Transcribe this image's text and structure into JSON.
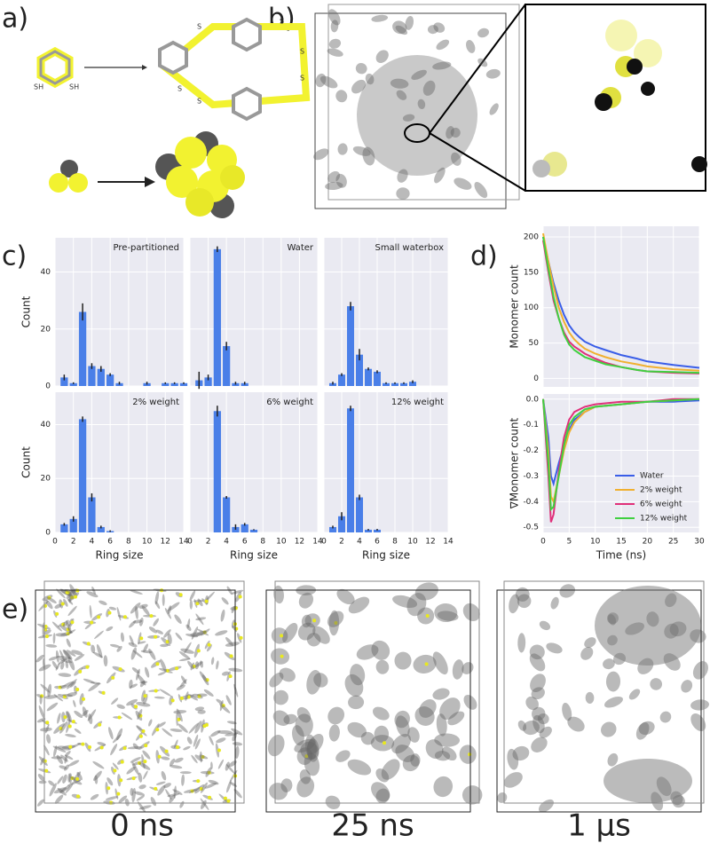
{
  "panel_labels": [
    "a)",
    "b)",
    "c)",
    "d)",
    "e)"
  ],
  "panel_a": {
    "thiol_labels": [
      "SH",
      "SH"
    ],
    "sulfur_labels": [
      "S",
      "S",
      "S",
      "S",
      "S",
      "S"
    ]
  },
  "chart_data": [
    {
      "type": "bar",
      "title": "Pre-partitioned",
      "x": [
        1,
        2,
        3,
        4,
        5,
        6,
        7,
        10,
        12,
        13,
        14
      ],
      "values": [
        3,
        1,
        26,
        7,
        6,
        4,
        1,
        1,
        1,
        1,
        1
      ],
      "errors": [
        1,
        0.3,
        3,
        1,
        1,
        0.5,
        0.5,
        0.5,
        0.3,
        0.3,
        0.3
      ],
      "color": "#4a7fe8",
      "xlim": [
        0,
        14
      ],
      "xticks": [
        0,
        2,
        4,
        6,
        8,
        10,
        12,
        14
      ],
      "ylim": [
        0,
        52
      ],
      "yticks": [
        0,
        20,
        40
      ],
      "ylabel": "Count",
      "grid": true
    },
    {
      "type": "bar",
      "title": "Water",
      "x": [
        1,
        2,
        3,
        4,
        5,
        6
      ],
      "values": [
        2,
        3,
        48,
        14,
        1,
        1
      ],
      "errors": [
        3,
        1,
        1,
        1.5,
        0.5,
        0.5
      ],
      "color": "#4a7fe8",
      "xlim": [
        0,
        14
      ],
      "xticks": [
        0,
        2,
        4,
        6,
        8,
        10,
        12,
        14
      ],
      "ylim": [
        0,
        52
      ],
      "yticks": [
        0,
        20,
        40
      ],
      "grid": true
    },
    {
      "type": "bar",
      "title": "Small waterbox",
      "x": [
        1,
        2,
        3,
        4,
        5,
        6,
        7,
        8,
        9,
        10
      ],
      "values": [
        1,
        4,
        28,
        11,
        6,
        5,
        1,
        1,
        1,
        1.5
      ],
      "errors": [
        0.5,
        0.5,
        1.5,
        2,
        0.5,
        0.5,
        0.3,
        0.3,
        0.3,
        0.5
      ],
      "color": "#4a7fe8",
      "xlim": [
        0,
        14
      ],
      "xticks": [
        0,
        2,
        4,
        6,
        8,
        10,
        12,
        14
      ],
      "ylim": [
        0,
        52
      ],
      "yticks": [
        0,
        20,
        40
      ],
      "grid": true
    },
    {
      "type": "bar",
      "title": "2% weight",
      "x": [
        1,
        2,
        3,
        4,
        5,
        6
      ],
      "values": [
        3,
        5,
        42,
        13,
        2,
        0.5
      ],
      "errors": [
        0.5,
        1,
        1,
        1.5,
        0.5,
        0.3
      ],
      "color": "#4a7fe8",
      "xlim": [
        0,
        14
      ],
      "xticks": [
        0,
        2,
        4,
        6,
        8,
        10,
        12,
        14
      ],
      "ylim": [
        0,
        52
      ],
      "yticks": [
        0,
        20,
        40
      ],
      "ylabel": "Count",
      "xlabel": "Ring size",
      "grid": true
    },
    {
      "type": "bar",
      "title": "6% weight",
      "x": [
        3,
        4,
        5,
        6,
        7
      ],
      "values": [
        45,
        13,
        2,
        3,
        1
      ],
      "errors": [
        2,
        0.5,
        1,
        0.5,
        0.2
      ],
      "color": "#4a7fe8",
      "xlim": [
        0,
        14
      ],
      "xticks": [
        0,
        2,
        4,
        6,
        8,
        10,
        12,
        14
      ],
      "ylim": [
        0,
        52
      ],
      "yticks": [
        0,
        20,
        40
      ],
      "xlabel": "Ring size",
      "grid": true
    },
    {
      "type": "bar",
      "title": "12% weight",
      "x": [
        1,
        2,
        3,
        4,
        5,
        6
      ],
      "values": [
        2,
        6,
        46,
        13,
        1,
        1
      ],
      "errors": [
        0.5,
        1.5,
        1,
        1,
        0.3,
        0.3
      ],
      "color": "#4a7fe8",
      "xlim": [
        0,
        14
      ],
      "xticks": [
        0,
        2,
        4,
        6,
        8,
        10,
        12,
        14
      ],
      "ylim": [
        0,
        52
      ],
      "yticks": [
        0,
        20,
        40
      ],
      "xlabel": "Ring size",
      "grid": true
    },
    {
      "type": "line",
      "ylabel": "Monomer count",
      "x": [
        0,
        1,
        2,
        3,
        4,
        5,
        6,
        7,
        8,
        10,
        12,
        15,
        18,
        20,
        25,
        30
      ],
      "series": [
        {
          "color": "#3a5ee8",
          "values": [
            200,
            165,
            135,
            110,
            90,
            75,
            65,
            58,
            52,
            45,
            40,
            33,
            28,
            24,
            19,
            15
          ]
        },
        {
          "color": "#f0b030",
          "values": [
            205,
            165,
            130,
            100,
            80,
            65,
            55,
            48,
            42,
            35,
            30,
            24,
            20,
            17,
            13,
            11
          ]
        },
        {
          "color": "#e0307a",
          "values": [
            195,
            150,
            110,
            85,
            65,
            52,
            45,
            40,
            35,
            28,
            22,
            16,
            12,
            10,
            8,
            7
          ]
        },
        {
          "color": "#40d040",
          "values": [
            200,
            155,
            115,
            85,
            62,
            48,
            40,
            35,
            30,
            25,
            20,
            16,
            12,
            10,
            9,
            8
          ]
        }
      ],
      "xlim": [
        0,
        30
      ],
      "xticks": [
        0,
        5,
        10,
        15,
        20,
        25,
        30
      ],
      "ylim": [
        -12,
        215
      ],
      "yticks": [
        0,
        50,
        100,
        150,
        200
      ],
      "grid": true
    },
    {
      "type": "line",
      "ylabel": "∇Monomer count",
      "xlabel": "Time (ns)",
      "x": [
        0,
        1,
        1.5,
        2,
        3,
        4,
        5,
        6,
        8,
        10,
        15,
        20,
        25,
        30
      ],
      "series": [
        {
          "name": "Water",
          "color": "#3a5ee8",
          "values": [
            0,
            -0.15,
            -0.3,
            -0.33,
            -0.25,
            -0.18,
            -0.12,
            -0.08,
            -0.05,
            -0.03,
            -0.02,
            -0.01,
            -0.01,
            -0.005
          ]
        },
        {
          "name": "2% weight",
          "color": "#f0b030",
          "values": [
            0,
            -0.2,
            -0.38,
            -0.4,
            -0.3,
            -0.2,
            -0.13,
            -0.09,
            -0.05,
            -0.03,
            -0.02,
            -0.01,
            -0.005,
            0
          ]
        },
        {
          "name": "6% weight",
          "color": "#e0307a",
          "values": [
            0,
            -0.3,
            -0.48,
            -0.45,
            -0.28,
            -0.15,
            -0.08,
            -0.05,
            -0.03,
            -0.02,
            -0.01,
            -0.01,
            0,
            0
          ]
        },
        {
          "name": "12% weight",
          "color": "#40d040",
          "values": [
            0,
            -0.25,
            -0.43,
            -0.42,
            -0.3,
            -0.18,
            -0.1,
            -0.07,
            -0.04,
            -0.03,
            -0.02,
            -0.01,
            -0.005,
            0
          ]
        }
      ],
      "xlim": [
        0,
        30
      ],
      "xticks": [
        0,
        5,
        10,
        15,
        20,
        25,
        30
      ],
      "ylim": [
        -0.52,
        0.02
      ],
      "yticks": [
        {
          "value": 0,
          "label": "0.0"
        },
        -0.1,
        -0.2,
        -0.3,
        -0.4,
        -0.5
      ],
      "grid": true,
      "legend": "lower right"
    }
  ],
  "panel_e": {
    "time_labels": [
      "0 ns",
      "25 ns",
      "1 µs"
    ]
  }
}
